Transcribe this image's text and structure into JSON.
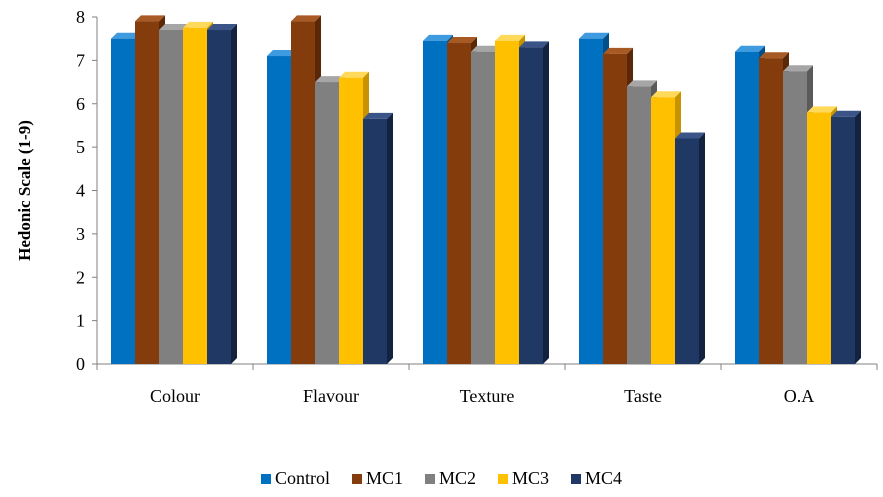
{
  "chart_data": {
    "type": "bar",
    "title": "",
    "xlabel": "",
    "ylabel": "Hedonic Scale (1-9)",
    "ylim": [
      0,
      8
    ],
    "yticks": [
      0,
      1,
      2,
      3,
      4,
      5,
      6,
      7,
      8
    ],
    "categories": [
      "Colour",
      "Flavour",
      "Texture",
      "Taste",
      "O.A"
    ],
    "series": [
      {
        "name": "Control",
        "values": [
          7.5,
          7.1,
          7.45,
          7.5,
          7.2
        ],
        "color": "#0070c0",
        "side": "#004f88",
        "top": "#3f9be0"
      },
      {
        "name": "MC1",
        "values": [
          7.9,
          7.9,
          7.4,
          7.15,
          7.05
        ],
        "color": "#843c0c",
        "side": "#5a2808",
        "top": "#a85a25"
      },
      {
        "name": "MC2",
        "values": [
          7.7,
          6.5,
          7.2,
          6.4,
          6.75
        ],
        "color": "#808080",
        "side": "#5a5a5a",
        "top": "#a6a6a6"
      },
      {
        "name": "MC3",
        "values": [
          7.75,
          6.6,
          7.45,
          6.15,
          5.8
        ],
        "color": "#ffc000",
        "side": "#c79300",
        "top": "#ffd95a"
      },
      {
        "name": "MC4",
        "values": [
          7.7,
          5.65,
          7.3,
          5.2,
          5.7
        ],
        "color": "#1f3864",
        "side": "#12223f",
        "top": "#3b5488"
      }
    ],
    "grid": false,
    "legend_position": "bottom"
  }
}
